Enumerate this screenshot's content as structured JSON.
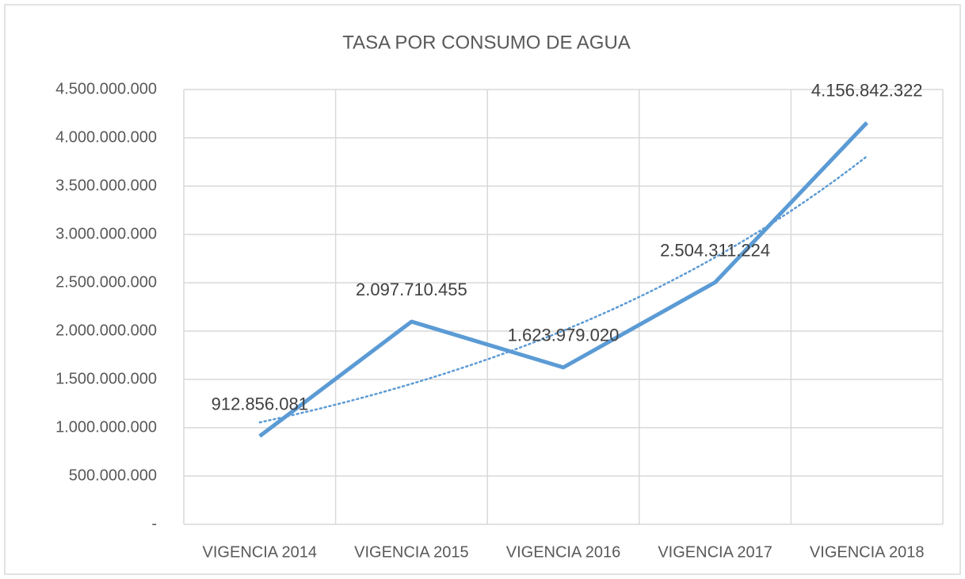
{
  "chart_data": {
    "type": "line",
    "title": "TASA POR CONSUMO DE AGUA",
    "categories": [
      "VIGENCIA 2014",
      "VIGENCIA 2015",
      "VIGENCIA 2016",
      "VIGENCIA 2017",
      "VIGENCIA 2018"
    ],
    "values": [
      912856081,
      2097710455,
      1623979020,
      2504311224,
      4156842322
    ],
    "value_labels": [
      "912.856.081",
      "2.097.710.455",
      "1.623.979.020",
      "2.504.311.224",
      "4.156.842.322"
    ],
    "color": "#5b9bd5",
    "trendline": "exponential",
    "ylim": [
      0,
      4500000000
    ],
    "yticks": [
      {
        "value": 0,
        "label": "-"
      },
      {
        "value": 500000000,
        "label": "500.000.000"
      },
      {
        "value": 1000000000,
        "label": "1.000.000.000"
      },
      {
        "value": 1500000000,
        "label": "1.500.000.000"
      },
      {
        "value": 2000000000,
        "label": "2.000.000.000"
      },
      {
        "value": 2500000000,
        "label": "2.500.000.000"
      },
      {
        "value": 3000000000,
        "label": "3.000.000.000"
      },
      {
        "value": 3500000000,
        "label": "3.500.000.000"
      },
      {
        "value": 4000000000,
        "label": "4.000.000.000"
      },
      {
        "value": 4500000000,
        "label": "4.500.000.000"
      }
    ],
    "grid": true
  }
}
